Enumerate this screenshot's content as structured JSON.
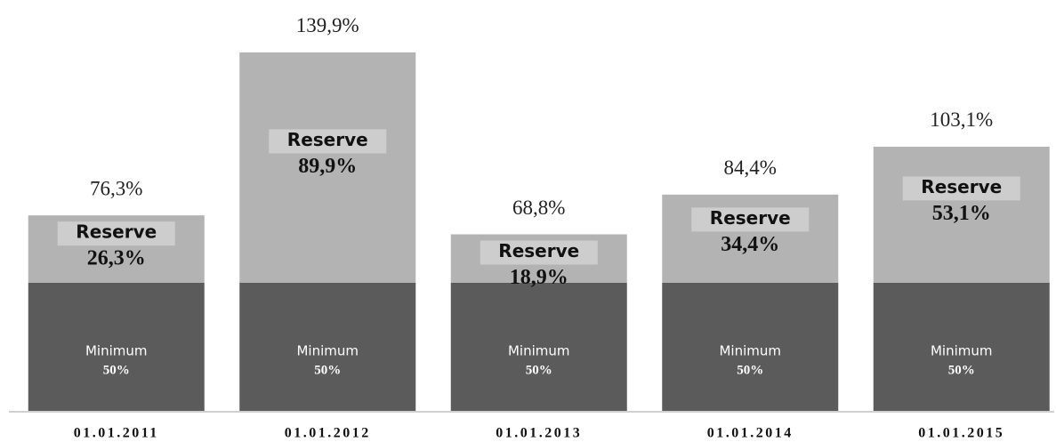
{
  "chart_data": {
    "type": "stacked_bar",
    "categories": [
      "01.01.2011",
      "01.01.2012",
      "01.01.2013",
      "01.01.2014",
      "01.01.2015"
    ],
    "series": [
      {
        "name": "Minimum",
        "color": "#5b5b5b",
        "values": [
          50,
          50,
          50,
          50,
          50
        ],
        "value_labels": [
          "50%",
          "50%",
          "50%",
          "50%",
          "50%"
        ]
      },
      {
        "name": "Reserve",
        "color": "#b3b3b3",
        "values": [
          26.3,
          89.9,
          18.9,
          34.4,
          53.1
        ],
        "value_labels": [
          "26,3%",
          "89,9%",
          "18,9%",
          "34,4%",
          "53,1%"
        ]
      }
    ],
    "totals": [
      76.3,
      139.9,
      68.8,
      84.4,
      103.1
    ],
    "total_labels": [
      "76,3%",
      "139,9%",
      "68,8%",
      "84,4%",
      "103,1%"
    ],
    "ylim": [
      0,
      160
    ]
  }
}
